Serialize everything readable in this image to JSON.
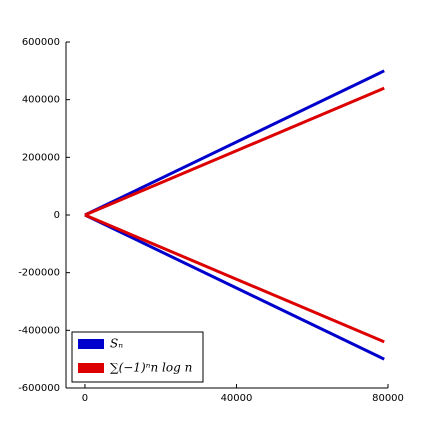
{
  "chart_data": {
    "type": "line",
    "series": [
      {
        "name": "Sₙ",
        "color": "#0000cc",
        "x": [
          0,
          79000
        ],
        "upper": [
          0,
          500000
        ],
        "lower": [
          0,
          -500000
        ]
      },
      {
        "name": "∑(−1)ⁿn log n",
        "color": "#dd0000",
        "x": [
          0,
          79000
        ],
        "upper": [
          0,
          440000
        ],
        "lower": [
          0,
          -440000
        ]
      }
    ],
    "xlim": [
      -5000,
      80000
    ],
    "xticks": [
      0,
      40000,
      80000
    ],
    "ylim": [
      -600000,
      600000
    ],
    "yticks": [
      -600000,
      -400000,
      -200000,
      0,
      200000,
      400000,
      600000
    ],
    "legend": "lower left"
  }
}
